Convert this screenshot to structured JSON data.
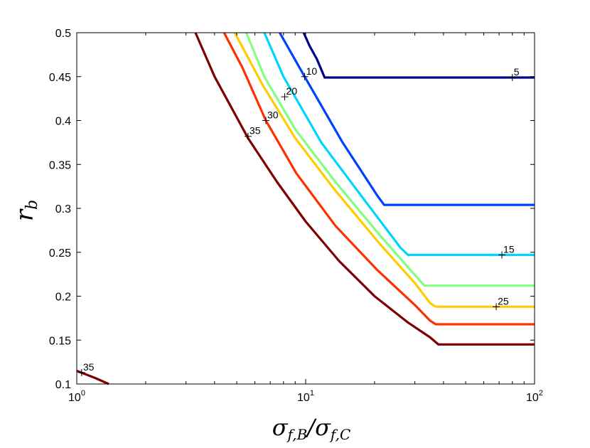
{
  "chart_data": {
    "type": "line",
    "subtype": "contour",
    "xscale": "log",
    "xlabel": "σf,B/σf,C",
    "ylabel": "rb",
    "xlim": [
      1,
      100
    ],
    "ylim": [
      0.1,
      0.5
    ],
    "yticks": [
      "0.1",
      "0.15",
      "0.2",
      "0.25",
      "0.3",
      "0.35",
      "0.4",
      "0.45",
      "0.5"
    ],
    "xticks": [
      {
        "base": "10",
        "exp": "0",
        "value": 1
      },
      {
        "base": "10",
        "exp": "1",
        "value": 10
      },
      {
        "base": "10",
        "exp": "2",
        "value": 100
      }
    ],
    "series": [
      {
        "name": "5",
        "color": "#00008f",
        "points": [
          [
            9.8,
            0.5
          ],
          [
            10.4,
            0.485
          ],
          [
            11.2,
            0.47
          ],
          [
            12.1,
            0.449
          ],
          [
            100,
            0.449
          ]
        ]
      },
      {
        "name": "10",
        "color": "#0040ff",
        "points": [
          [
            7.7,
            0.5
          ],
          [
            9.9,
            0.45
          ],
          [
            14.5,
            0.375
          ],
          [
            20.5,
            0.315
          ],
          [
            22.0,
            0.304
          ],
          [
            100,
            0.304
          ]
        ]
      },
      {
        "name": "15",
        "color": "#00d4ff",
        "points": [
          [
            6.6,
            0.5
          ],
          [
            8.0,
            0.45
          ],
          [
            11.7,
            0.375
          ],
          [
            18.0,
            0.31
          ],
          [
            26.0,
            0.255
          ],
          [
            28.0,
            0.247
          ],
          [
            100,
            0.247
          ]
        ]
      },
      {
        "name": "20",
        "color": "#80ff80",
        "points": [
          [
            5.5,
            0.5
          ],
          [
            6.6,
            0.45
          ],
          [
            9.0,
            0.39
          ],
          [
            13.5,
            0.33
          ],
          [
            21.0,
            0.27
          ],
          [
            30.5,
            0.222
          ],
          [
            33.0,
            0.212
          ],
          [
            100,
            0.212
          ]
        ]
      },
      {
        "name": "25",
        "color": "#ffcc00",
        "points": [
          [
            4.9,
            0.5
          ],
          [
            6.5,
            0.44
          ],
          [
            9.0,
            0.38
          ],
          [
            13.5,
            0.32
          ],
          [
            21.0,
            0.26
          ],
          [
            30.0,
            0.215
          ],
          [
            35.0,
            0.192
          ],
          [
            37.0,
            0.188
          ],
          [
            100,
            0.188
          ]
        ]
      },
      {
        "name": "30",
        "color": "#ff3000",
        "points": [
          [
            4.4,
            0.5
          ],
          [
            5.3,
            0.46
          ],
          [
            6.7,
            0.4
          ],
          [
            9.1,
            0.34
          ],
          [
            13.5,
            0.28
          ],
          [
            20.5,
            0.23
          ],
          [
            30.0,
            0.19
          ],
          [
            35.0,
            0.172
          ],
          [
            37.0,
            0.168
          ],
          [
            100,
            0.168
          ]
        ]
      },
      {
        "name": "35",
        "color": "#800000",
        "points": [
          [
            3.3,
            0.5
          ],
          [
            4.0,
            0.45
          ],
          [
            5.6,
            0.38
          ],
          [
            7.5,
            0.33
          ],
          [
            10.0,
            0.285
          ],
          [
            14.0,
            0.24
          ],
          [
            20.0,
            0.2
          ],
          [
            28.0,
            0.17
          ],
          [
            35.0,
            0.153
          ],
          [
            38.0,
            0.145
          ],
          [
            100,
            0.145
          ]
        ]
      },
      {
        "name": "35-lower",
        "color": "#800000",
        "points": [
          [
            1.0,
            0.115
          ],
          [
            1.2,
            0.107
          ],
          [
            1.38,
            0.1
          ]
        ]
      }
    ],
    "contour_labels": [
      {
        "text": "5",
        "x": 80,
        "y": 0.449
      },
      {
        "text": "10",
        "x": 9.9,
        "y": 0.45
      },
      {
        "text": "15",
        "x": 72,
        "y": 0.247
      },
      {
        "text": "20",
        "x": 8.1,
        "y": 0.427
      },
      {
        "text": "25",
        "x": 68,
        "y": 0.188
      },
      {
        "text": "30",
        "x": 6.7,
        "y": 0.4
      },
      {
        "text": "35",
        "x": 5.6,
        "y": 0.382
      },
      {
        "text": "35",
        "x": 1.05,
        "y": 0.113
      }
    ],
    "grid": false,
    "legend": "none"
  }
}
